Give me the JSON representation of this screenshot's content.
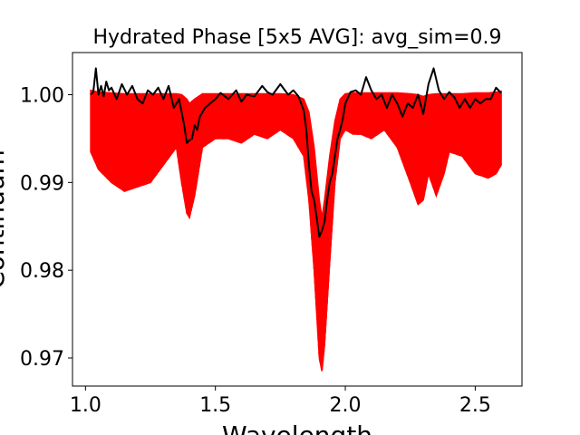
{
  "chart_data": {
    "type": "line",
    "title": "Hydrated Phase [5x5 AVG]: avg_sim=0.9",
    "xlabel": "Wavelength",
    "ylabel": "Continuum",
    "xlim": [
      0.95,
      2.68
    ],
    "ylim": [
      0.9668,
      1.0048
    ],
    "xticks": [
      1.0,
      1.5,
      2.0,
      2.5
    ],
    "xtick_labels": [
      "1.0",
      "1.5",
      "2.0",
      "2.5"
    ],
    "yticks": [
      0.97,
      0.98,
      0.99,
      1.0
    ],
    "ytick_labels": [
      "0.97",
      "0.98",
      "0.99",
      "1.00"
    ],
    "grid": false,
    "envelope": {
      "color": "#ff0000",
      "x": [
        1.02,
        1.05,
        1.1,
        1.15,
        1.2,
        1.25,
        1.3,
        1.35,
        1.37,
        1.39,
        1.4,
        1.42,
        1.45,
        1.5,
        1.55,
        1.6,
        1.65,
        1.7,
        1.75,
        1.8,
        1.84,
        1.86,
        1.88,
        1.9,
        1.91,
        1.92,
        1.94,
        1.96,
        1.98,
        2.0,
        2.03,
        2.06,
        2.1,
        2.15,
        2.2,
        2.25,
        2.28,
        2.3,
        2.32,
        2.35,
        2.38,
        2.4,
        2.45,
        2.5,
        2.55,
        2.58,
        2.6
      ],
      "upper": [
        1.0005,
        1.0003,
        1.0002,
        1.0001,
        1.0001,
        1.0001,
        1.0001,
        1.0001,
        1.0,
        0.9995,
        0.999,
        0.9995,
        1.0001,
        1.0001,
        1.0001,
        1.0001,
        1.0001,
        1.0001,
        1.0001,
        1.0,
        0.9995,
        0.998,
        0.994,
        0.988,
        0.986,
        0.988,
        0.993,
        0.997,
        0.9995,
        1.0001,
        1.0002,
        1.0002,
        1.0002,
        1.0002,
        1.0002,
        1.0001,
        1.0,
        0.9998,
        1.0,
        1.0001,
        1.0001,
        1.0001,
        1.0001,
        1.0002,
        1.0002,
        1.0003,
        1.0004
      ],
      "lower": [
        0.9935,
        0.9915,
        0.99,
        0.989,
        0.9895,
        0.99,
        0.992,
        0.994,
        0.99,
        0.9865,
        0.986,
        0.9885,
        0.994,
        0.995,
        0.995,
        0.9945,
        0.9955,
        0.995,
        0.996,
        0.995,
        0.993,
        0.988,
        0.98,
        0.97,
        0.9685,
        0.9715,
        0.981,
        0.99,
        0.995,
        0.996,
        0.9955,
        0.9955,
        0.995,
        0.996,
        0.994,
        0.99,
        0.9875,
        0.988,
        0.991,
        0.9885,
        0.991,
        0.9935,
        0.993,
        0.991,
        0.9905,
        0.991,
        0.992
      ]
    },
    "series": [
      {
        "color": "#000000",
        "x": [
          1.02,
          1.03,
          1.04,
          1.05,
          1.06,
          1.07,
          1.08,
          1.09,
          1.1,
          1.12,
          1.14,
          1.16,
          1.18,
          1.2,
          1.22,
          1.24,
          1.26,
          1.28,
          1.3,
          1.32,
          1.34,
          1.36,
          1.37,
          1.38,
          1.39,
          1.4,
          1.41,
          1.42,
          1.43,
          1.44,
          1.46,
          1.48,
          1.5,
          1.52,
          1.55,
          1.58,
          1.6,
          1.62,
          1.65,
          1.68,
          1.7,
          1.72,
          1.75,
          1.78,
          1.8,
          1.82,
          1.84,
          1.85,
          1.86,
          1.87,
          1.88,
          1.89,
          1.9,
          1.91,
          1.92,
          1.93,
          1.94,
          1.95,
          1.96,
          1.97,
          1.98,
          1.99,
          2.0,
          2.02,
          2.04,
          2.06,
          2.08,
          2.1,
          2.12,
          2.14,
          2.16,
          2.18,
          2.2,
          2.22,
          2.24,
          2.26,
          2.28,
          2.3,
          2.32,
          2.34,
          2.36,
          2.38,
          2.4,
          2.42,
          2.44,
          2.46,
          2.48,
          2.5,
          2.52,
          2.54,
          2.56,
          2.58,
          2.6
        ],
        "y": [
          1.0,
          1.0003,
          1.003,
          1.0,
          1.001,
          0.9998,
          1.0015,
          1.0005,
          1.0008,
          0.9995,
          1.0012,
          1.0,
          1.001,
          0.9995,
          0.999,
          1.0005,
          1.0,
          1.0008,
          0.9995,
          1.001,
          0.9985,
          0.9995,
          0.998,
          0.9965,
          0.9945,
          0.9948,
          0.995,
          0.9965,
          0.996,
          0.9975,
          0.9985,
          0.999,
          0.9995,
          1.0002,
          0.9995,
          1.0005,
          0.9992,
          1.0,
          0.9998,
          1.001,
          1.0003,
          1.0,
          1.0012,
          1.0,
          1.0005,
          0.9998,
          0.9982,
          0.996,
          0.992,
          0.989,
          0.988,
          0.986,
          0.9838,
          0.9845,
          0.9855,
          0.988,
          0.99,
          0.991,
          0.993,
          0.995,
          0.996,
          0.9972,
          0.999,
          1.0003,
          1.0005,
          1.0,
          1.002,
          1.0005,
          0.9995,
          1.0,
          0.9985,
          1.0,
          0.999,
          0.9975,
          0.999,
          0.9985,
          1.0,
          0.9978,
          1.0012,
          1.003,
          1.0005,
          0.9995,
          1.0003,
          0.9997,
          0.9985,
          0.9995,
          0.9985,
          0.9995,
          0.999,
          0.9995,
          0.9995,
          1.0008,
          1.0002
        ]
      }
    ]
  }
}
